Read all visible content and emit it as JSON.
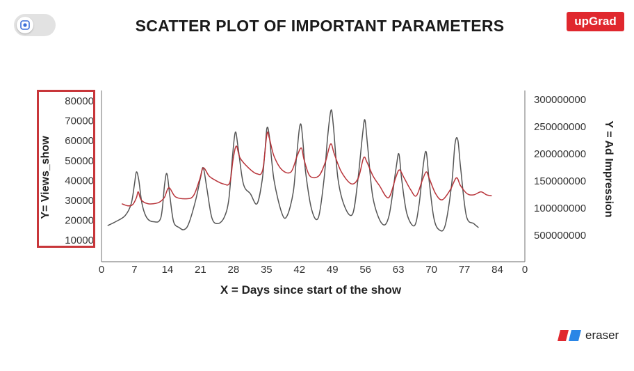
{
  "header": {
    "title": "SCATTER PLOT OF IMPORTANT PARAMETERS",
    "logo_text": "upGrad",
    "toggle_icon": "screen-capture-icon"
  },
  "footer": {
    "brand_text": "eraser",
    "brand_icon": "eraser-logo-icon"
  },
  "colors": {
    "accent_red": "#e0282e",
    "views_line": "#555555",
    "ad_line": "#b8343a",
    "box": "#c8363a"
  },
  "chart_data": {
    "type": "line",
    "xlabel": "X = Days since start of the show",
    "ylabel_left": "Y= Views_show",
    "ylabel_right": "Y = Ad Impression",
    "x_ticks": [
      "0",
      "7",
      "14",
      "21",
      "28",
      "35",
      "42",
      "49",
      "56",
      "63",
      "70",
      "77",
      "84",
      "0"
    ],
    "y_left_ticks": [
      "80000",
      "70000",
      "60000",
      "50000",
      "40000",
      "30000",
      "20000",
      "10000"
    ],
    "y_right_ticks": [
      "300000000",
      "250000000",
      "200000000",
      "150000000",
      "100000000",
      "500000000"
    ],
    "ylim_left": [
      0,
      85000
    ],
    "xlim": [
      0,
      90
    ],
    "grid": false,
    "series": [
      {
        "id": "views",
        "points": [
          [
            1.3,
            17000
          ],
          [
            3,
            19000
          ],
          [
            5,
            22000
          ],
          [
            6.3,
            28000
          ],
          [
            7,
            38000
          ],
          [
            7.4,
            44000
          ],
          [
            7.9,
            40000
          ],
          [
            8.6,
            28000
          ],
          [
            9.6,
            21000
          ],
          [
            11,
            19000
          ],
          [
            12.6,
            21000
          ],
          [
            13.4,
            38000
          ],
          [
            13.9,
            43000
          ],
          [
            14.5,
            32000
          ],
          [
            15.3,
            19000
          ],
          [
            16.5,
            16000
          ],
          [
            17.5,
            15000
          ],
          [
            18.5,
            18000
          ],
          [
            20,
            30000
          ],
          [
            21,
            41000
          ],
          [
            21.6,
            46000
          ],
          [
            22.4,
            35000
          ],
          [
            23.4,
            21000
          ],
          [
            24.6,
            18000
          ],
          [
            26,
            21000
          ],
          [
            27,
            30000
          ],
          [
            27.8,
            52000
          ],
          [
            28.4,
            64000
          ],
          [
            29,
            56000
          ],
          [
            30.1,
            38000
          ],
          [
            31.6,
            33000
          ],
          [
            33,
            28000
          ],
          [
            34.1,
            40000
          ],
          [
            34.7,
            55000
          ],
          [
            35.1,
            66000
          ],
          [
            35.6,
            62000
          ],
          [
            36.6,
            40000
          ],
          [
            38.3,
            23000
          ],
          [
            39.4,
            22000
          ],
          [
            40.7,
            34000
          ],
          [
            41.4,
            52000
          ],
          [
            42.3,
            68000
          ],
          [
            43.3,
            44000
          ],
          [
            44.6,
            25000
          ],
          [
            46,
            21000
          ],
          [
            47.2,
            40000
          ],
          [
            48,
            62000
          ],
          [
            48.7,
            75000
          ],
          [
            49.2,
            67000
          ],
          [
            50.2,
            40000
          ],
          [
            51.7,
            26000
          ],
          [
            53.3,
            23000
          ],
          [
            54.4,
            40000
          ],
          [
            55.4,
            63000
          ],
          [
            55.9,
            70000
          ],
          [
            56.5,
            56000
          ],
          [
            57.6,
            31000
          ],
          [
            59.5,
            18000
          ],
          [
            61,
            22000
          ],
          [
            62.5,
            46000
          ],
          [
            63.1,
            53000
          ],
          [
            63.7,
            40000
          ],
          [
            64.8,
            23000
          ],
          [
            66.4,
            17000
          ],
          [
            67.4,
            28000
          ],
          [
            68.3,
            48000
          ],
          [
            68.9,
            54000
          ],
          [
            69.5,
            40000
          ],
          [
            70.5,
            21000
          ],
          [
            71.6,
            15000
          ],
          [
            72.9,
            17000
          ],
          [
            74.3,
            38000
          ],
          [
            75,
            58000
          ],
          [
            75.6,
            60000
          ],
          [
            76.2,
            46000
          ],
          [
            77.4,
            22000
          ],
          [
            79,
            18000
          ],
          [
            80,
            16000
          ]
        ]
      },
      {
        "id": "ad_impression",
        "points": [
          [
            4.3,
            28000
          ],
          [
            5.5,
            27000
          ],
          [
            6.6,
            27500
          ],
          [
            7.4,
            31000
          ],
          [
            7.8,
            34000
          ],
          [
            8.4,
            30000
          ],
          [
            9.9,
            28000
          ],
          [
            12,
            28500
          ],
          [
            13.3,
            31000
          ],
          [
            14.3,
            36000
          ],
          [
            15.7,
            31500
          ],
          [
            18,
            30500
          ],
          [
            19.5,
            32000
          ],
          [
            20.8,
            40000
          ],
          [
            21.6,
            46000
          ],
          [
            22.8,
            42000
          ],
          [
            24,
            40000
          ],
          [
            25.8,
            38000
          ],
          [
            27.2,
            38500
          ],
          [
            27.9,
            50000
          ],
          [
            28.6,
            57000
          ],
          [
            29.4,
            51000
          ],
          [
            31.2,
            46000
          ],
          [
            33,
            43000
          ],
          [
            34.2,
            45000
          ],
          [
            35.1,
            63000
          ],
          [
            35.6,
            61000
          ],
          [
            36.6,
            52000
          ],
          [
            38.3,
            45000
          ],
          [
            40.2,
            44000
          ],
          [
            41.5,
            52000
          ],
          [
            42.4,
            56000
          ],
          [
            43,
            50000
          ],
          [
            44.2,
            42000
          ],
          [
            46.1,
            42000
          ],
          [
            47.5,
            49000
          ],
          [
            48.6,
            58000
          ],
          [
            49.4,
            53000
          ],
          [
            50.9,
            44000
          ],
          [
            53,
            38000
          ],
          [
            54.5,
            41000
          ],
          [
            55.6,
            51000
          ],
          [
            56.3,
            49000
          ],
          [
            57.6,
            42000
          ],
          [
            59,
            37000
          ],
          [
            60.9,
            31000
          ],
          [
            62.4,
            41000
          ],
          [
            63.2,
            45000
          ],
          [
            64.2,
            41000
          ],
          [
            65.6,
            35000
          ],
          [
            66.8,
            32000
          ],
          [
            68.1,
            40000
          ],
          [
            68.9,
            44000
          ],
          [
            69.5,
            41000
          ],
          [
            70.9,
            33000
          ],
          [
            72.3,
            30000
          ],
          [
            74,
            35000
          ],
          [
            75.3,
            41000
          ],
          [
            76.2,
            37000
          ],
          [
            77.6,
            33000
          ],
          [
            79,
            32500
          ],
          [
            80.5,
            34000
          ],
          [
            81.7,
            32500
          ],
          [
            82.8,
            32000
          ]
        ]
      }
    ]
  }
}
